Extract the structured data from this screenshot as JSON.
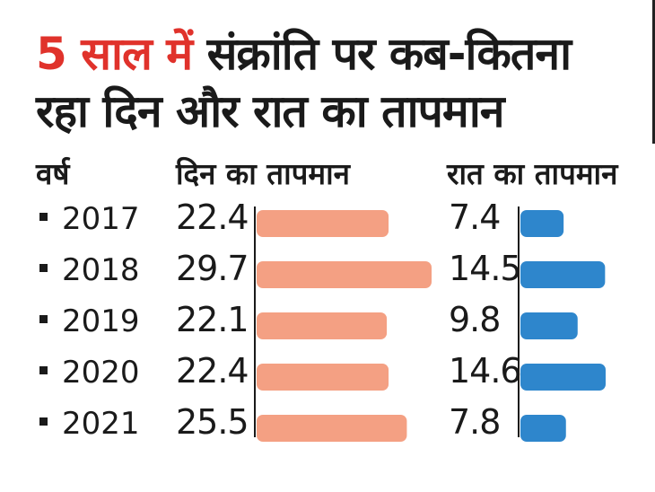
{
  "title": {
    "highlight": "5 साल में",
    "rest": " संक्रांति पर कब-कितना",
    "line2": "रहा दिन और रात का तापमान"
  },
  "headers": {
    "year": "वर्ष",
    "day": "दिन का तापमान",
    "night": "रात का तापमान"
  },
  "colors": {
    "day_bar": "#f4a083",
    "night_bar": "#2e86cc",
    "title_accent": "#e0322b",
    "axis": "#1a1a1a"
  },
  "chart_data": {
    "type": "bar",
    "categories": [
      "2017",
      "2018",
      "2019",
      "2020",
      "2021"
    ],
    "series": [
      {
        "name": "दिन का तापमान",
        "values": [
          22.4,
          29.7,
          22.1,
          22.4,
          25.5
        ]
      },
      {
        "name": "रात का तापमान",
        "values": [
          7.4,
          14.5,
          9.8,
          14.6,
          7.8
        ]
      }
    ],
    "value_labels": {
      "day": [
        "22.4",
        "29.7",
        "22.1",
        "22.4",
        "25.5"
      ],
      "night": [
        "7.4",
        "14.5",
        "9.8",
        "14.6",
        "7.8"
      ]
    },
    "orientation": "horizontal",
    "grid": false
  }
}
